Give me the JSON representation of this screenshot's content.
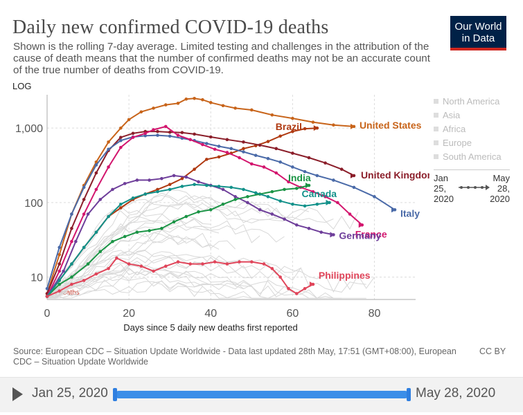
{
  "header": {
    "title": "Daily new confirmed COVID-19 deaths",
    "subtitle": "Shown is the rolling 7-day average. Limited testing and challenges in the attribution of the cause of death means that the number of confirmed deaths may not be an accurate count of the true number of deaths from COVID-19.",
    "logo_line1": "Our World",
    "logo_line2": "in Data"
  },
  "colors": {
    "united_states": "#c8641a",
    "brazil": "#b03a12",
    "united_kingdom": "#8b1e2a",
    "italy": "#4a6aa8",
    "france": "#d3166e",
    "germany": "#6e3e9a",
    "india": "#1a9445",
    "canada": "#12918a",
    "philippines": "#e0455a",
    "grid": "#dedede"
  },
  "chart_data": {
    "type": "line",
    "scale_label": "LOG",
    "xlabel": "Days since 5 daily new deaths first reported",
    "x_ticks": [
      0,
      20,
      40,
      60,
      80
    ],
    "y_ticks": [
      10,
      100,
      1000
    ],
    "y_tick_labels": [
      "10",
      "100",
      "1,000"
    ],
    "xlim": [
      0,
      85
    ],
    "ylim": [
      5,
      2800
    ],
    "annotation": "6.4 deaths",
    "series": [
      {
        "name": "United States",
        "color": "#c8641a",
        "x": [
          0,
          3,
          6,
          9,
          12,
          15,
          18,
          20,
          23,
          26,
          29,
          32,
          34,
          36,
          38,
          40,
          43,
          46,
          50,
          55,
          60,
          65,
          70,
          75
        ],
        "y": [
          6,
          20,
          70,
          170,
          350,
          650,
          1000,
          1300,
          1650,
          1850,
          2050,
          2150,
          2450,
          2500,
          2400,
          2200,
          2000,
          1850,
          1750,
          1500,
          1350,
          1200,
          1100,
          1050
        ]
      },
      {
        "name": "Brazil",
        "color": "#b03a12",
        "x": [
          0,
          3,
          6,
          9,
          12,
          15,
          18,
          21,
          24,
          27,
          30,
          33,
          36,
          39,
          42,
          45,
          48,
          51,
          54,
          57,
          60,
          63,
          66
        ],
        "y": [
          5.5,
          9,
          15,
          25,
          40,
          65,
          85,
          110,
          130,
          150,
          175,
          210,
          280,
          380,
          410,
          460,
          530,
          580,
          660,
          780,
          900,
          980,
          1000
        ]
      },
      {
        "name": "United Kingdom",
        "color": "#8b1e2a",
        "x": [
          0,
          3,
          6,
          9,
          12,
          15,
          18,
          21,
          24,
          27,
          30,
          33,
          36,
          40,
          44,
          48,
          52,
          56,
          60,
          64,
          68,
          72,
          75
        ],
        "y": [
          6,
          15,
          45,
          110,
          250,
          500,
          750,
          850,
          900,
          900,
          880,
          870,
          830,
          760,
          700,
          650,
          590,
          530,
          460,
          400,
          340,
          280,
          230
        ]
      },
      {
        "name": "Italy",
        "color": "#4a6aa8",
        "x": [
          0,
          3,
          6,
          9,
          12,
          15,
          18,
          21,
          24,
          27,
          30,
          33,
          36,
          39,
          42,
          45,
          48,
          51,
          54,
          57,
          60,
          63,
          66,
          70,
          75,
          80,
          85
        ],
        "y": [
          7,
          25,
          70,
          160,
          320,
          520,
          680,
          760,
          790,
          800,
          780,
          730,
          680,
          620,
          570,
          530,
          480,
          430,
          390,
          350,
          300,
          260,
          230,
          200,
          160,
          120,
          80
        ]
      },
      {
        "name": "France",
        "color": "#d3166e",
        "x": [
          0,
          3,
          6,
          9,
          12,
          15,
          18,
          21,
          24,
          26,
          29,
          32,
          35,
          38,
          41,
          44,
          47,
          50,
          53,
          56,
          59,
          62,
          65,
          68,
          71,
          74,
          77
        ],
        "y": [
          5.5,
          12,
          30,
          70,
          150,
          300,
          550,
          750,
          850,
          950,
          1050,
          800,
          700,
          600,
          520,
          470,
          400,
          330,
          300,
          250,
          190,
          160,
          140,
          120,
          100,
          70,
          50
        ]
      },
      {
        "name": "Germany",
        "color": "#6e3e9a",
        "x": [
          0,
          4,
          7,
          10,
          13,
          16,
          19,
          22,
          25,
          28,
          31,
          34,
          37,
          40,
          43,
          46,
          49,
          52,
          55,
          58,
          61,
          64,
          67,
          70
        ],
        "y": [
          5.5,
          12,
          30,
          70,
          110,
          150,
          180,
          200,
          200,
          210,
          230,
          220,
          190,
          170,
          150,
          120,
          100,
          80,
          70,
          60,
          50,
          45,
          40,
          37
        ]
      },
      {
        "name": "India",
        "color": "#1a9445",
        "x": [
          0,
          3,
          6,
          10,
          13,
          16,
          19,
          22,
          25,
          28,
          31,
          34,
          37,
          40,
          43,
          46,
          49,
          52,
          55,
          58,
          61,
          64
        ],
        "y": [
          5.5,
          8,
          10,
          15,
          22,
          30,
          35,
          40,
          42,
          45,
          55,
          65,
          75,
          80,
          95,
          110,
          120,
          130,
          140,
          150,
          155,
          170
        ]
      },
      {
        "name": "Canada",
        "color": "#12918a",
        "x": [
          0,
          3,
          6,
          9,
          12,
          15,
          18,
          21,
          24,
          27,
          30,
          33,
          36,
          39,
          42,
          45,
          48,
          51,
          54,
          57,
          60,
          63,
          66,
          69
        ],
        "y": [
          5.5,
          9,
          15,
          25,
          40,
          65,
          95,
          115,
          130,
          140,
          150,
          165,
          175,
          170,
          165,
          160,
          150,
          135,
          120,
          105,
          95,
          90,
          95,
          100
        ]
      },
      {
        "name": "Philippines",
        "color": "#e0455a",
        "x": [
          0,
          3,
          6,
          9,
          12,
          15,
          17,
          20,
          23,
          26,
          29,
          32,
          35,
          38,
          41,
          44,
          47,
          50,
          53,
          55,
          57,
          59,
          61,
          63,
          65
        ],
        "y": [
          5.5,
          6.5,
          8,
          9,
          11,
          13,
          18,
          15,
          14,
          12,
          14,
          16,
          15,
          15,
          16,
          15,
          16,
          16,
          15,
          13,
          10,
          7,
          6,
          7,
          8
        ]
      }
    ],
    "continent_legend": [
      "North America",
      "Asia",
      "Africa",
      "Europe",
      "South America"
    ],
    "time_legend": {
      "start_line1": "Jan",
      "start_line2": "25,",
      "start_line3": "2020",
      "end_line1": "May",
      "end_line2": "28,",
      "end_line3": "2020"
    }
  },
  "footer": {
    "source": "Source: European CDC – Situation Update Worldwide - Data last updated 28th May, 17:51 (GMT+08:00), European CDC – Situation Update Worldwide",
    "license": "CC BY"
  },
  "timeline": {
    "start_label": "Jan 25, 2020",
    "end_label": "May 28, 2020"
  }
}
